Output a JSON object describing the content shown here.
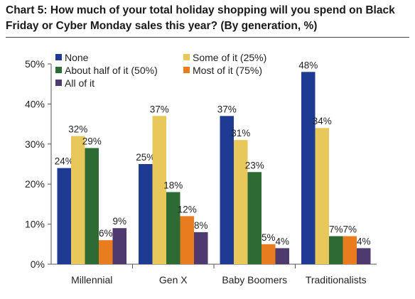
{
  "title": "Chart 5: How much of your total holiday shopping will you spend on Black Friday or Cyber Monday sales this year? (By generation, %)",
  "chart_data": {
    "type": "bar",
    "categories": [
      "Millennial",
      "Gen X",
      "Baby Boomers",
      "Traditionalists"
    ],
    "series": [
      {
        "name": "None",
        "color": "#1F3A93",
        "values": [
          24,
          25,
          37,
          48
        ]
      },
      {
        "name": "Some of it (25%)",
        "color": "#E8C85A",
        "values": [
          32,
          37,
          31,
          34
        ]
      },
      {
        "name": "About half of it (50%)",
        "color": "#2E6B34",
        "values": [
          29,
          18,
          23,
          7
        ]
      },
      {
        "name": "Most of it (75%)",
        "color": "#E87C1E",
        "values": [
          6,
          12,
          5,
          7
        ]
      },
      {
        "name": "All of it",
        "color": "#4E3A6E",
        "values": [
          9,
          8,
          4,
          4
        ]
      }
    ],
    "ylim": [
      0,
      50
    ],
    "yticks": [
      0,
      10,
      20,
      30,
      40,
      50
    ],
    "ytick_format": "{v}%",
    "label_format": "{v}%",
    "legend_position": "top-left",
    "grid": false
  }
}
